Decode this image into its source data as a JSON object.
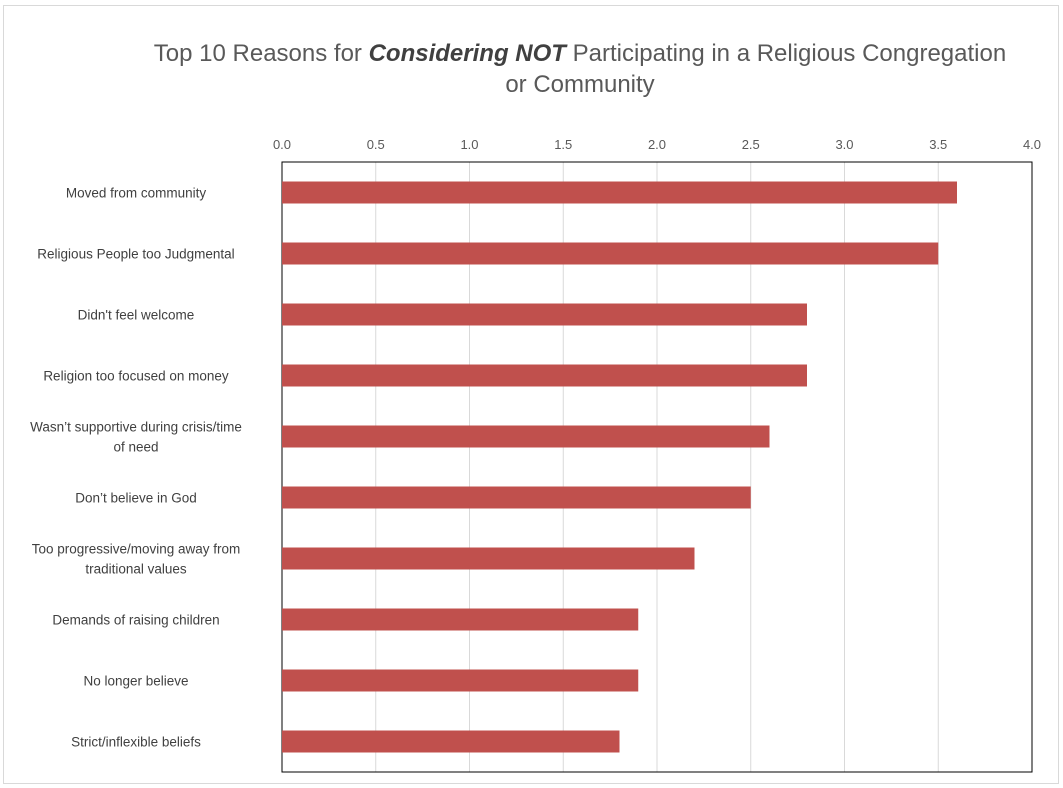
{
  "chart_data": {
    "type": "bar",
    "orientation": "horizontal",
    "title": {
      "prefix": "Top 10 Reasons for ",
      "emphasis": "Considering NOT",
      "suffix_line1": " Participating in a Religious Congregation",
      "line2": "or Community"
    },
    "xlabel": "",
    "ylabel": "",
    "xlim": [
      0,
      4
    ],
    "xticks": [
      "0.0",
      "0.5",
      "1.0",
      "1.5",
      "2.0",
      "2.5",
      "3.0",
      "3.5",
      "4.0"
    ],
    "xaxis_position": "top",
    "grid": true,
    "legend": "none",
    "bar_color": "#c0504d",
    "categories": [
      [
        "Moved from community"
      ],
      [
        "Religious People too Judgmental"
      ],
      [
        "Didn't feel welcome"
      ],
      [
        "Religion too focused on money"
      ],
      [
        "Wasn’t supportive during crisis/time",
        "of need"
      ],
      [
        "Don’t believe in God"
      ],
      [
        "Too progressive/moving away from",
        "traditional values"
      ],
      [
        "Demands of raising children"
      ],
      [
        "No longer believe"
      ],
      [
        "Strict/inflexible beliefs"
      ]
    ],
    "values": [
      3.6,
      3.5,
      2.8,
      2.8,
      2.6,
      2.5,
      2.2,
      1.9,
      1.9,
      1.8
    ]
  }
}
